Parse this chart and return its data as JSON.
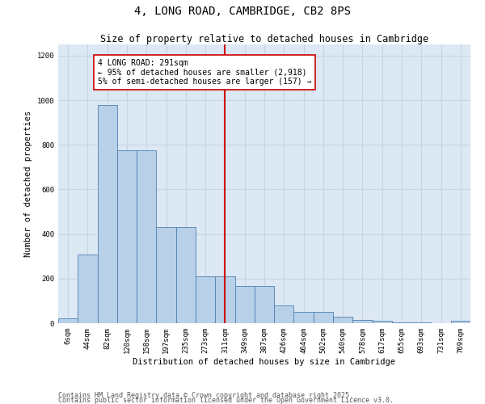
{
  "title": "4, LONG ROAD, CAMBRIDGE, CB2 8PS",
  "subtitle": "Size of property relative to detached houses in Cambridge",
  "xlabel": "Distribution of detached houses by size in Cambridge",
  "ylabel": "Number of detached properties",
  "bar_labels": [
    "6sqm",
    "44sqm",
    "82sqm",
    "120sqm",
    "158sqm",
    "197sqm",
    "235sqm",
    "273sqm",
    "311sqm",
    "349sqm",
    "387sqm",
    "426sqm",
    "464sqm",
    "502sqm",
    "540sqm",
    "578sqm",
    "617sqm",
    "655sqm",
    "693sqm",
    "731sqm",
    "769sqm"
  ],
  "bar_values": [
    22,
    308,
    980,
    775,
    775,
    430,
    430,
    210,
    210,
    165,
    165,
    80,
    50,
    50,
    30,
    15,
    10,
    5,
    5,
    0,
    10
  ],
  "bar_color": "#b8d0e8",
  "bar_edge_color": "#5080b0",
  "vline_color": "#cc0000",
  "annotation_text": "4 LONG ROAD: 291sqm\n← 95% of detached houses are smaller (2,918)\n5% of semi-detached houses are larger (157) →",
  "annotation_box_color": "#cc0000",
  "annotation_bg": "#ffffff",
  "ylim": [
    0,
    1250
  ],
  "yticks": [
    0,
    200,
    400,
    600,
    800,
    1000,
    1200
  ],
  "grid_color": "#c8d4e4",
  "bg_color": "#dce8f4",
  "footer1": "Contains HM Land Registry data © Crown copyright and database right 2025.",
  "footer2": "Contains public sector information licensed under the Open Government Licence v3.0.",
  "title_fontsize": 10,
  "subtitle_fontsize": 8.5,
  "label_fontsize": 7.5,
  "tick_fontsize": 6.5,
  "footer_fontsize": 6
}
